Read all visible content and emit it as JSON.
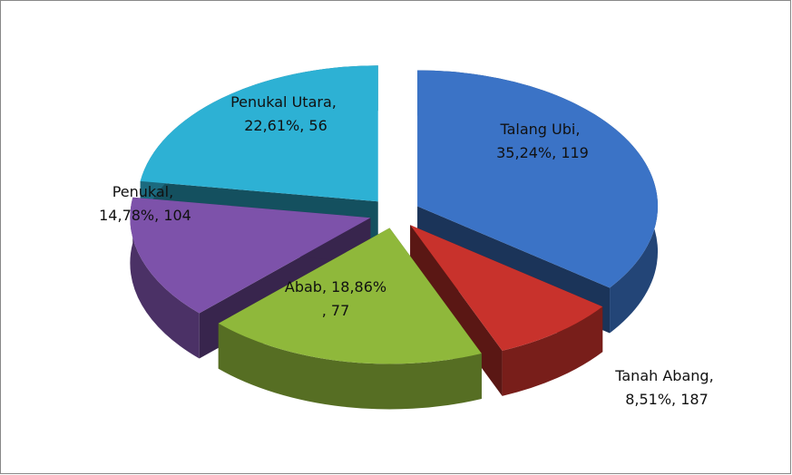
{
  "chart_data": {
    "type": "pie3d",
    "categories": [
      "Talang Ubi",
      "Tanah Abang",
      "Abab",
      "Penukal",
      "Penukal Utara"
    ],
    "values": [
      35.24,
      8.51,
      18.86,
      14.78,
      22.61
    ],
    "value_labels": [
      "35,24%",
      "8,51%",
      "18,86%",
      "14,78%",
      "22,61%"
    ],
    "counts": [
      119,
      187,
      77,
      104,
      56
    ],
    "separator": ", ",
    "colors": [
      "#3b73c6",
      "#c8322c",
      "#8fb83b",
      "#7d52aa",
      "#2db1d4"
    ]
  }
}
